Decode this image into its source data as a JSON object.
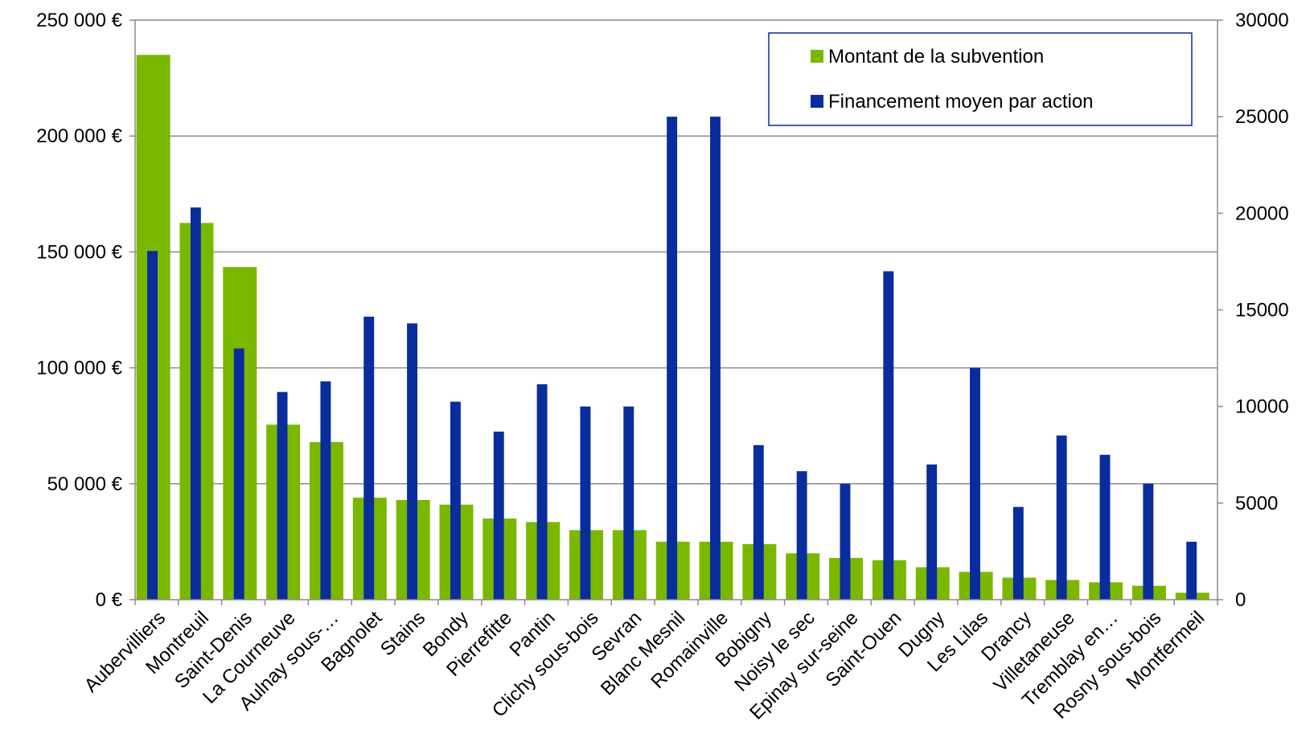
{
  "chart_data": {
    "type": "bar",
    "categories": [
      "Aubervilliers",
      "Montreuil",
      "Saint-Denis",
      "La Courneuve",
      "Aulnay sous-…",
      "Bagnolet",
      "Stains",
      "Bondy",
      "Pierrefitte",
      "Pantin",
      "Clichy sous-bois",
      "Sevran",
      "Blanc Mesnil",
      "Romainville",
      "Bobigny",
      "Noisy le sec",
      "Epinay sur-seine",
      "Saint-Ouen",
      "Dugny",
      "Les Lilas",
      "Drancy",
      "Villetaneuse",
      "Tremblay en…",
      "Rosny sous-bois",
      "Montfermeil"
    ],
    "series": [
      {
        "name": "Montant de la subvention",
        "axis": "left",
        "color": "#7ab800",
        "values": [
          235000,
          162500,
          143500,
          75500,
          68000,
          44000,
          43000,
          41000,
          35000,
          33500,
          30000,
          30000,
          25000,
          25000,
          24000,
          20000,
          18000,
          17000,
          14000,
          12000,
          9500,
          8500,
          7500,
          6000,
          3000
        ]
      },
      {
        "name": "Financement moyen par action",
        "axis": "right",
        "color": "#0a2c9c",
        "values": [
          18050,
          20300,
          13000,
          10750,
          11300,
          14650,
          14300,
          10250,
          8700,
          11150,
          10000,
          10000,
          25000,
          25000,
          8000,
          6650,
          6000,
          17000,
          7000,
          12000,
          4800,
          8500,
          7500,
          6000,
          3000
        ]
      }
    ],
    "y_left": {
      "min": 0,
      "max": 250000,
      "ticks": [
        0,
        50000,
        100000,
        150000,
        200000,
        250000
      ],
      "tick_labels": [
        "0 €",
        "50 000 €",
        "100 000 €",
        "150 000 €",
        "200 000 €",
        "250 000 €"
      ]
    },
    "y_right": {
      "min": 0,
      "max": 30000,
      "ticks": [
        0,
        5000,
        10000,
        15000,
        20000,
        25000,
        30000
      ],
      "tick_labels": [
        "0",
        "5000",
        "10000",
        "15000",
        "20000",
        "25000",
        "30000"
      ]
    },
    "grid": true,
    "legend_position": "top-right",
    "legend_border_color": "#0a2c9c",
    "grid_color": "#8c8c8c"
  }
}
